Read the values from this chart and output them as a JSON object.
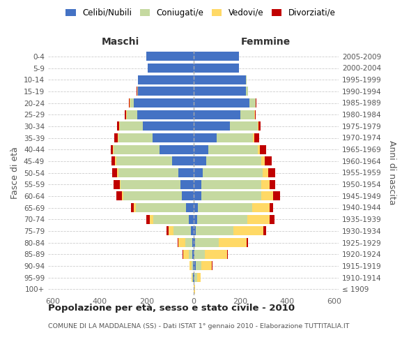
{
  "age_groups": [
    "100+",
    "95-99",
    "90-94",
    "85-89",
    "80-84",
    "75-79",
    "70-74",
    "65-69",
    "60-64",
    "55-59",
    "50-54",
    "45-49",
    "40-44",
    "35-39",
    "30-34",
    "25-29",
    "20-24",
    "15-19",
    "10-14",
    "5-9",
    "0-4"
  ],
  "birth_years": [
    "≤ 1909",
    "1910-1914",
    "1915-1919",
    "1920-1924",
    "1925-1929",
    "1930-1934",
    "1935-1939",
    "1940-1944",
    "1945-1949",
    "1950-1954",
    "1955-1959",
    "1960-1964",
    "1965-1969",
    "1970-1974",
    "1975-1979",
    "1980-1984",
    "1985-1989",
    "1990-1994",
    "1995-1999",
    "2000-2004",
    "2005-2009"
  ],
  "male": {
    "celibe": [
      0,
      2,
      2,
      4,
      5,
      10,
      20,
      30,
      50,
      55,
      65,
      90,
      145,
      175,
      215,
      240,
      255,
      235,
      235,
      195,
      200
    ],
    "coniugato": [
      0,
      2,
      5,
      15,
      30,
      75,
      150,
      215,
      250,
      255,
      255,
      240,
      195,
      145,
      100,
      45,
      15,
      5,
      2,
      0,
      0
    ],
    "vedovo": [
      0,
      2,
      8,
      25,
      30,
      20,
      15,
      10,
      5,
      5,
      5,
      5,
      3,
      2,
      2,
      2,
      1,
      0,
      0,
      0,
      0
    ],
    "divorziato": [
      0,
      0,
      0,
      2,
      2,
      10,
      15,
      10,
      25,
      25,
      20,
      15,
      10,
      15,
      10,
      5,
      3,
      1,
      0,
      0,
      0
    ]
  },
  "female": {
    "nubile": [
      0,
      5,
      10,
      5,
      8,
      10,
      15,
      20,
      35,
      35,
      40,
      55,
      65,
      100,
      155,
      200,
      240,
      225,
      225,
      195,
      195
    ],
    "coniugata": [
      2,
      10,
      25,
      45,
      100,
      160,
      215,
      230,
      255,
      255,
      255,
      235,
      210,
      155,
      120,
      60,
      25,
      8,
      2,
      0,
      0
    ],
    "vedova": [
      5,
      15,
      45,
      95,
      120,
      130,
      95,
      75,
      50,
      35,
      25,
      15,
      10,
      5,
      3,
      2,
      1,
      0,
      0,
      0,
      0
    ],
    "divorziata": [
      0,
      0,
      2,
      2,
      5,
      10,
      20,
      15,
      30,
      25,
      30,
      30,
      25,
      20,
      10,
      5,
      2,
      1,
      0,
      0,
      0
    ]
  },
  "colors": {
    "celibe": "#4472C4",
    "coniugato": "#C5D9A0",
    "vedovo": "#FFD966",
    "divorziato": "#C00000"
  },
  "xlim": 620,
  "title": "Popolazione per età, sesso e stato civile - 2010",
  "subtitle": "COMUNE DI LA MADDALENA (SS) - Dati ISTAT 1° gennaio 2010 - Elaborazione TUTTITALIA.IT",
  "ylabel_left": "Fasce di età",
  "ylabel_right": "Anni di nascita",
  "xlabel_maschi": "Maschi",
  "xlabel_femmine": "Femmine",
  "bg_color": "#ffffff",
  "grid_color": "#cccccc"
}
